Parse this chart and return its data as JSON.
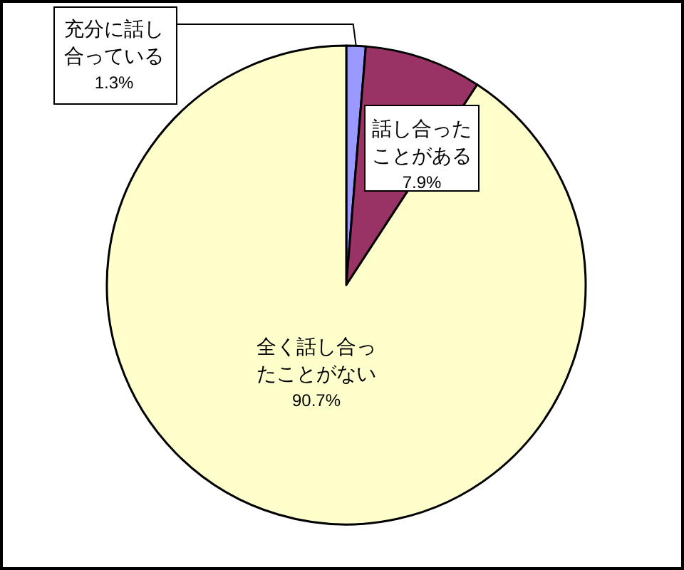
{
  "chart_data": {
    "type": "pie",
    "categories": [
      "充分に話し合っている",
      "話し合ったことがある",
      "全く話し合ったことがない"
    ],
    "values": [
      1.3,
      7.9,
      90.7
    ],
    "value_labels": [
      "1.3%",
      "7.9%",
      "90.7%"
    ],
    "colors": [
      "#9999ff",
      "#993366",
      "#ffffcc"
    ]
  }
}
